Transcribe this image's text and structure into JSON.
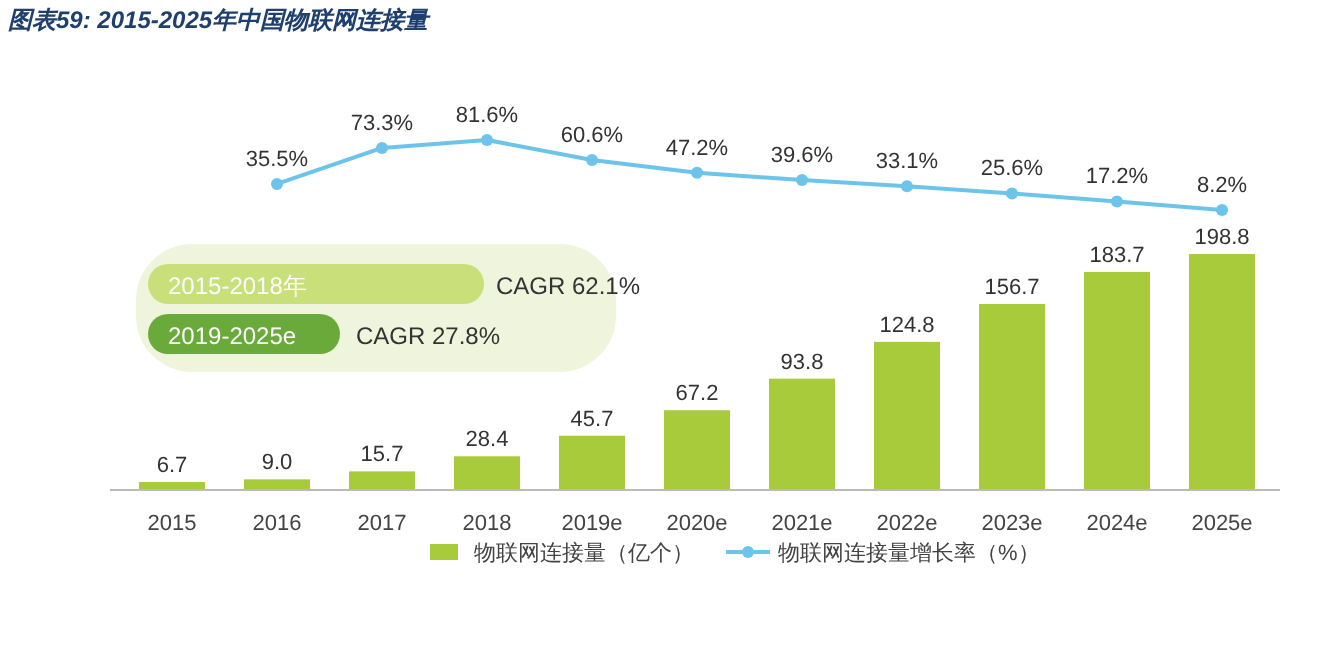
{
  "chart_data": [
    {
      "type": "line",
      "title": "图表59:  2015-2025年中国物联网连接量",
      "categories": [
        null,
        null,
        null,
        null,
        null,
        null,
        null,
        null,
        null,
        null,
        null
      ],
      "series": [
        {
          "name": "物联网连接量增长率（%）",
          "color": "#6cc4ea",
          "values": [
            null,
            35.5,
            73.3,
            81.6,
            60.6,
            47.2,
            39.6,
            33.1,
            25.6,
            17.2,
            8.2
          ],
          "value_labels": [
            null,
            "35.5%",
            "73.3%",
            "81.6%",
            "60.6%",
            "47.2%",
            "39.6%",
            "33.1%",
            "25.6%",
            "17.2%",
            "8.2%"
          ]
        }
      ],
      "marker": "circle",
      "data_labels": true,
      "legend": "bottom"
    },
    {
      "type": "bar",
      "categories": [
        "2015",
        "2016",
        "2017",
        "2018",
        "2019e",
        "2020e",
        "2021e",
        "2022e",
        "2023e",
        "2024e",
        "2025e"
      ],
      "series": [
        {
          "name": "物联网连接量（亿个）",
          "type": "bar",
          "color": "#a8cb3c",
          "values": [
            6.7,
            9.0,
            15.7,
            28.4,
            45.7,
            67.2,
            93.8,
            124.8,
            156.7,
            183.7,
            198.8
          ],
          "value_labels": [
            "6.7",
            "9.0",
            "15.7",
            "28.4",
            "45.7",
            "67.2",
            "93.8",
            "124.8",
            "156.7",
            "183.7",
            "198.8"
          ]
        }
      ],
      "annotations": [
        "2015-2018年",
        "CAGR 62.1%",
        "2019-2025e",
        "CAGR 27.8%"
      ],
      "data_labels": true,
      "legend": "bottom",
      "grid": false
    }
  ]
}
